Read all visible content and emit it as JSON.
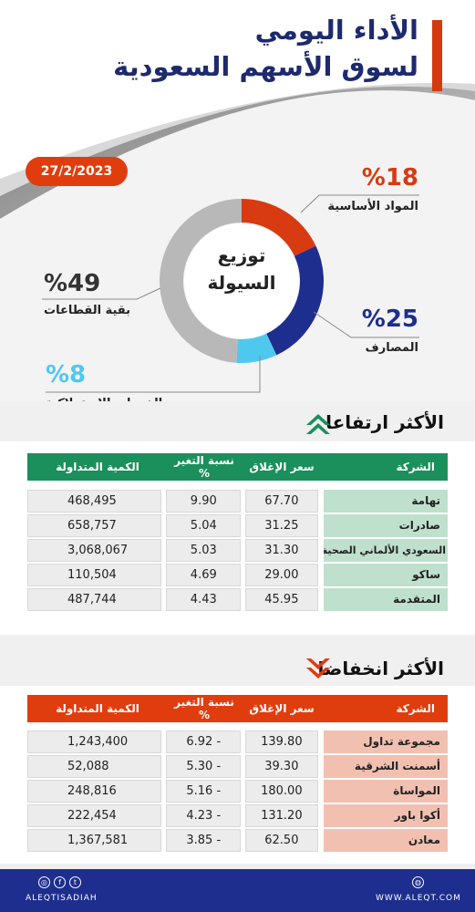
{
  "header": {
    "title_line1": "الأداء اليومي",
    "title_line2": "لسوق الأسهم السعودية",
    "date": "27/2/2023"
  },
  "liquidity": {
    "center_line1": "توزيع",
    "center_line2": "السيولة",
    "segments": [
      {
        "pct": "%18",
        "label": "المواد الأساسية",
        "value": 18,
        "color": "#d83a12"
      },
      {
        "pct": "%25",
        "label": "المصارف",
        "value": 25,
        "color": "#1e2e8e"
      },
      {
        "pct": "%8",
        "label": "الخدمات الاستهلاكية",
        "value": 8,
        "color": "#4fc8f0"
      },
      {
        "pct": "%49",
        "label": "بقية القطاعات",
        "value": 49,
        "color": "#b8b8b8"
      }
    ]
  },
  "gainers": {
    "title": "الأكثر ارتفاعا",
    "headers": {
      "company": "الشركة",
      "close": "سعر الإغلاق",
      "change": "نسبة التغير %",
      "volume": "الكمية المتداولة"
    },
    "rows": [
      {
        "company": "تهامة",
        "close": "67.70",
        "change": "9.90",
        "volume": "468,495"
      },
      {
        "company": "صادرات",
        "close": "31.25",
        "change": "5.04",
        "volume": "658,757"
      },
      {
        "company": "السعودي الألماني الصحية",
        "close": "31.30",
        "change": "5.03",
        "volume": "3,068,067"
      },
      {
        "company": "ساكو",
        "close": "29.00",
        "change": "4.69",
        "volume": "110,504"
      },
      {
        "company": "المتقدمة",
        "close": "45.95",
        "change": "4.43",
        "volume": "487,744"
      }
    ]
  },
  "losers": {
    "title": "الأكثر انخفاضا",
    "headers": {
      "company": "الشركة",
      "close": "سعر الإغلاق",
      "change": "نسبة التغير %",
      "volume": "الكمية المتداولة"
    },
    "rows": [
      {
        "company": "مجموعة تداول",
        "close": "139.80",
        "change": "- 6.92",
        "volume": "1,243,400"
      },
      {
        "company": "أسمنت الشرقية",
        "close": "39.30",
        "change": "- 5.30",
        "volume": "52,088"
      },
      {
        "company": "المواساة",
        "close": "180.00",
        "change": "- 5.16",
        "volume": "248,816"
      },
      {
        "company": "أكوا باور",
        "close": "131.20",
        "change": "- 4.23",
        "volume": "222,454"
      },
      {
        "company": "معادن",
        "close": "62.50",
        "change": "- 3.85",
        "volume": "1,367,581"
      }
    ]
  },
  "footer": {
    "handle": "ALEQTISADIAH",
    "website": "WWW.ALEQT.COM"
  }
}
